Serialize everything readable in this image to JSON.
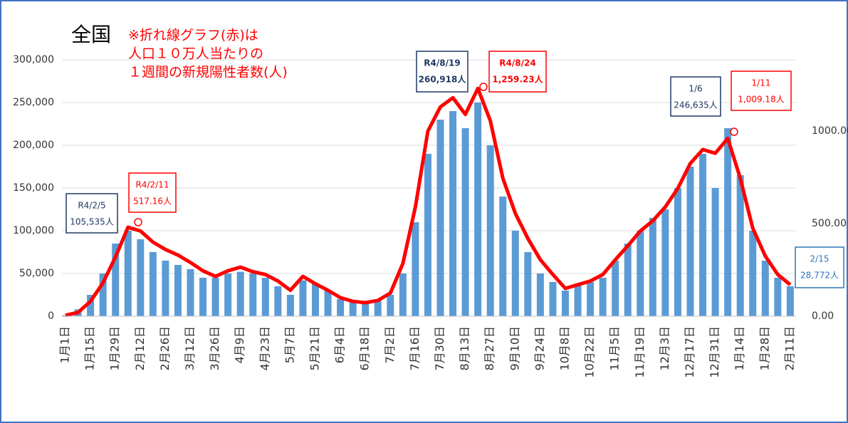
{
  "chart_data": {
    "type": "bar_line",
    "title": "全国",
    "note": [
      "※折れ線グラフ(赤)は",
      "人口１０万人当たりの",
      "１週間の新規陽性者数(人)"
    ],
    "categories": [
      "1月1日",
      null,
      "1月15日",
      null,
      "1月29日",
      null,
      "2月12日",
      null,
      "2月26日",
      null,
      "3月12日",
      null,
      "3月26日",
      null,
      "4月9日",
      null,
      "4月23日",
      null,
      "5月7日",
      null,
      "5月21日",
      null,
      "6月4日",
      null,
      "6月18日",
      null,
      "7月2日",
      null,
      "7月16日",
      null,
      "7月30日",
      null,
      "8月13日",
      null,
      "8月27日",
      null,
      "9月10日",
      null,
      "9月24日",
      null,
      "10月8日",
      null,
      "10月22日",
      null,
      "11月5日",
      null,
      "11月19日",
      null,
      "12月3日",
      null,
      "12月17日",
      null,
      "12月31日",
      null,
      "1月14日",
      null,
      "1月28日",
      null,
      "2月11日"
    ],
    "series": [
      {
        "color": "#5b9bd5",
        "values": [
          1000,
          8000,
          25000,
          50000,
          85000,
          100000,
          90000,
          75000,
          65000,
          60000,
          55000,
          45000,
          45000,
          50000,
          52000,
          50000,
          45000,
          35000,
          25000,
          42000,
          38000,
          30000,
          20000,
          16000,
          15000,
          18000,
          25000,
          50000,
          110000,
          190000,
          230000,
          240000,
          220000,
          250000,
          200000,
          140000,
          100000,
          75000,
          50000,
          40000,
          30000,
          38000,
          40000,
          45000,
          65000,
          85000,
          100000,
          115000,
          125000,
          150000,
          175000,
          190000,
          150000,
          220000,
          165000,
          100000,
          65000,
          45000,
          35000
        ]
      },
      {
        "color": "#ff0000",
        "axis": "y2",
        "values": [
          5,
          20,
          80,
          180,
          320,
          480,
          460,
          400,
          360,
          330,
          290,
          245,
          215,
          245,
          265,
          240,
          225,
          190,
          140,
          215,
          175,
          140,
          100,
          80,
          73,
          85,
          125,
          285,
          590,
          1000,
          1130,
          1180,
          1090,
          1230,
          1055,
          745,
          555,
          420,
          305,
          225,
          150,
          170,
          190,
          225,
          305,
          380,
          460,
          515,
          590,
          690,
          825,
          900,
          880,
          960,
          745,
          475,
          325,
          225,
          170
        ]
      }
    ],
    "ylim": [
      0,
      345000
    ],
    "yticks": [
      {
        "value": 0,
        "label": "0"
      },
      {
        "value": 50000,
        "label": "50,000"
      },
      {
        "value": 100000,
        "label": "100,000"
      },
      {
        "value": 150000,
        "label": "150,000"
      },
      {
        "value": 200000,
        "label": "200,000"
      },
      {
        "value": 250000,
        "label": "250,000"
      },
      {
        "value": 300000,
        "label": "300,000"
      }
    ],
    "y2lim": [
      0,
      1592.3
    ],
    "y2ticks": [
      {
        "value": 0,
        "label": "0.00"
      },
      {
        "value": 500,
        "label": "500.00"
      },
      {
        "value": 1000,
        "label": "1000.00"
      }
    ],
    "grid": true,
    "annotations": [
      {
        "date": "R4/2/5",
        "value_label": "105,535人"
      },
      {
        "date": "R4/2/11",
        "value_label": "517.16人"
      },
      {
        "date": "R4/8/19",
        "value_label": "260,918人"
      },
      {
        "date": "R4/8/24",
        "value_label": "1,259.23人"
      },
      {
        "date": "1/6",
        "value_label": "246,635人"
      },
      {
        "date": "1/11",
        "value_label": "1,009.18人"
      },
      {
        "date": "2/15",
        "value_label": "28,772人"
      }
    ]
  }
}
